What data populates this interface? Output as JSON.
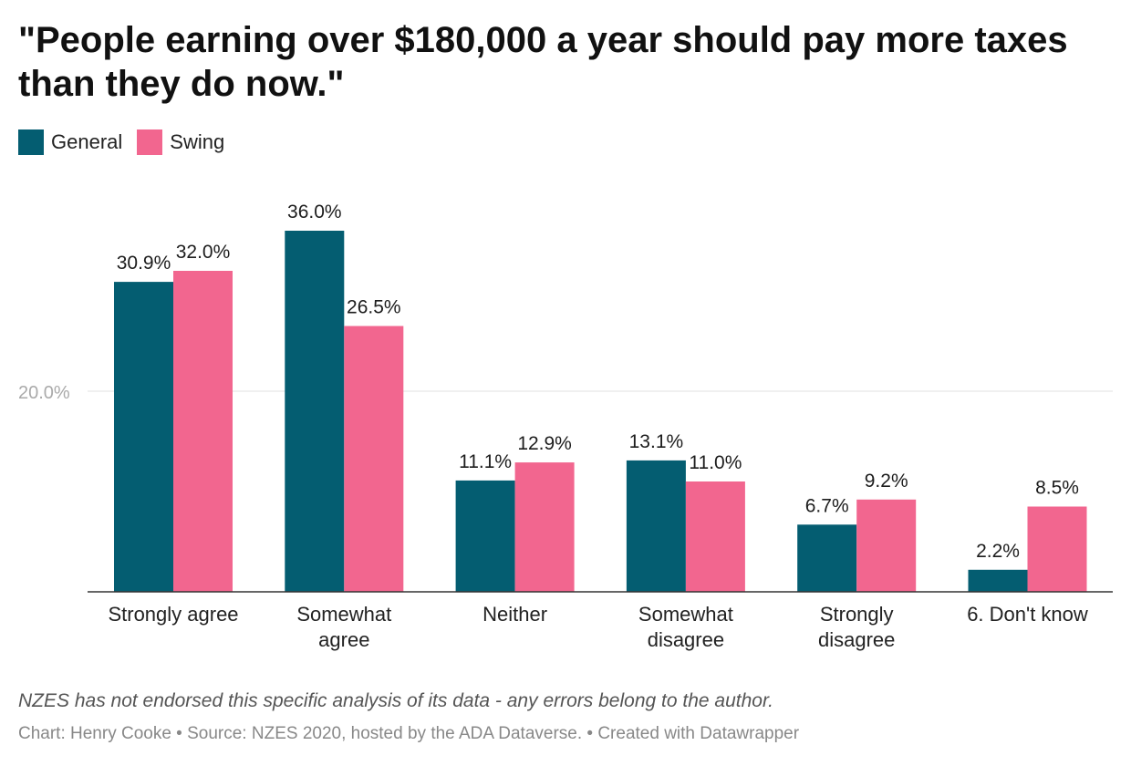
{
  "chart_data": {
    "type": "bar",
    "title": "\"People earning over $180,000 a year should pay more taxes than they do now.\"",
    "categories": [
      [
        "Strongly agree"
      ],
      [
        "Somewhat",
        "agree"
      ],
      [
        "Neither"
      ],
      [
        "Somewhat",
        "disagree"
      ],
      [
        "Strongly",
        "disagree"
      ],
      [
        "6. Don't know"
      ]
    ],
    "series": [
      {
        "name": "General",
        "color": "#045d71",
        "values": [
          30.9,
          36.0,
          11.1,
          13.1,
          6.7,
          2.2
        ],
        "labels": [
          "30.9%",
          "36.0%",
          "11.1%",
          "13.1%",
          "6.7%",
          "2.2%"
        ]
      },
      {
        "name": "Swing",
        "color": "#f2668f",
        "values": [
          32.0,
          26.5,
          12.9,
          11.0,
          9.2,
          8.5
        ],
        "labels": [
          "32.0%",
          "26.5%",
          "12.9%",
          "11.0%",
          "9.2%",
          "8.5%"
        ]
      }
    ],
    "ylim": [
      0,
      36
    ],
    "yticks": [
      {
        "value": 20,
        "label": "20.0%"
      }
    ],
    "grid": true,
    "legend": "top-left",
    "xlabel": "",
    "ylabel": ""
  },
  "footer": {
    "note": "NZES has not endorsed this specific analysis of its data - any errors belong to the author.",
    "credits": "Chart: Henry Cooke • Source: NZES 2020, hosted by the ADA Dataverse. • Created with Datawrapper"
  }
}
